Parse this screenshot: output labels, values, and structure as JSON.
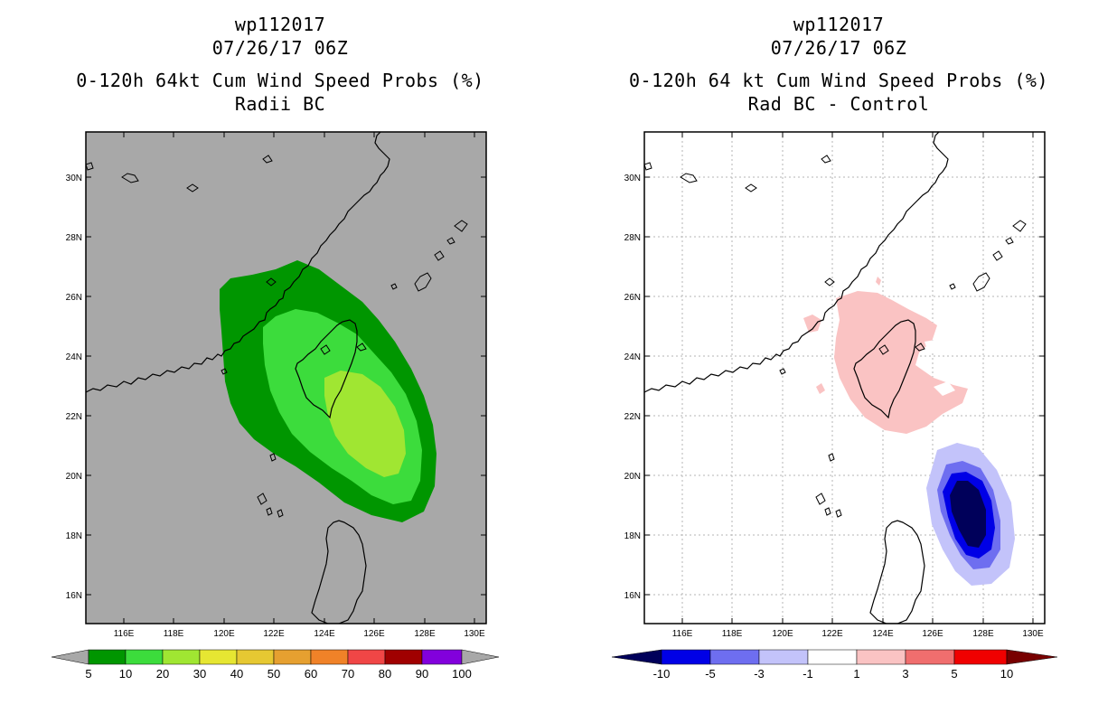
{
  "left_panel": {
    "title_lines": [
      "wp112017",
      "07/26/17 06Z",
      "0-120h 64kt Cum Wind Speed Probs (%)",
      "Radii BC"
    ],
    "background": "#a8a8a8",
    "lat_labels": [
      "30N",
      "28N",
      "26N",
      "24N",
      "22N",
      "20N",
      "18N",
      "16N"
    ],
    "lon_labels": [
      "116E",
      "118E",
      "120E",
      "122E",
      "124E",
      "126E",
      "128E",
      "130E"
    ],
    "contour_colors": [
      "#009600",
      "#3cdc3c",
      "#a0e632"
    ],
    "colorbar": {
      "labels": [
        "5",
        "10",
        "20",
        "30",
        "40",
        "50",
        "60",
        "70",
        "80",
        "90",
        "100"
      ],
      "colors": [
        "#009600",
        "#3cdc3c",
        "#a0e632",
        "#e6e632",
        "#e6c832",
        "#e6a030",
        "#f08228",
        "#f04646",
        "#a00000",
        "#8200dc"
      ],
      "end_color": "#a8a8a8"
    }
  },
  "right_panel": {
    "title_lines": [
      "wp112017",
      "07/26/17 06Z",
      "0-120h 64 kt Cum Wind Speed Probs (%)",
      "Rad BC - Control"
    ],
    "background": "#ffffff",
    "lat_labels": [
      "30N",
      "28N",
      "26N",
      "24N",
      "22N",
      "20N",
      "18N",
      "16N"
    ],
    "lon_labels": [
      "116E",
      "118E",
      "120E",
      "122E",
      "124E",
      "126E",
      "128E",
      "130E"
    ],
    "colorbar": {
      "labels": [
        "-10",
        "-5",
        "-3",
        "-1",
        "1",
        "3",
        "5",
        "10"
      ],
      "colors": [
        "#0000e6",
        "#6e6ef0",
        "#c3c3fa",
        "#ffffff",
        "#fac3c3",
        "#f06e6e",
        "#f00000"
      ],
      "low_end_color": "#00005a",
      "high_end_color": "#780000"
    },
    "positive_color": "#fac3c3",
    "negative_colors": [
      "#c3c3fa",
      "#6e6ef0",
      "#0000e6",
      "#00005a"
    ]
  }
}
